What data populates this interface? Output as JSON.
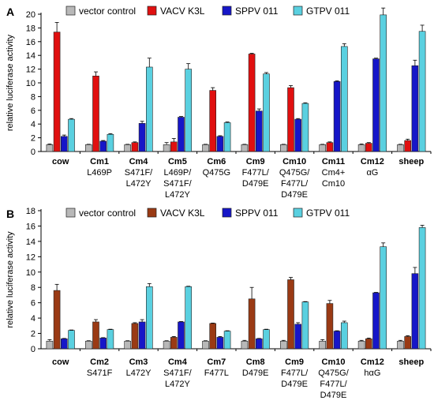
{
  "colors": {
    "A": [
      "#b8b8b8",
      "#e01010",
      "#1616c8",
      "#5ad0e0"
    ],
    "B": [
      "#b8b8b8",
      "#9a3a14",
      "#1616c8",
      "#5ad0e0"
    ]
  },
  "chart_data": [
    {
      "panel": "A",
      "type": "bar",
      "ylabel": "relative luciferase activity",
      "ylim": [
        0,
        20
      ],
      "yticks": [
        0,
        2,
        4,
        6,
        8,
        10,
        12,
        14,
        16,
        18,
        20
      ],
      "legend": [
        "vector control",
        "VACV K3L",
        "SPPV 011",
        "GTPV 011"
      ],
      "categories": [
        {
          "name": "cow",
          "sub": []
        },
        {
          "name": "Cm1",
          "sub": [
            "L469P"
          ]
        },
        {
          "name": "Cm4",
          "sub": [
            "S471F/",
            "L472Y"
          ]
        },
        {
          "name": "Cm5",
          "sub": [
            "L469P/",
            "S471F/",
            "L472Y"
          ]
        },
        {
          "name": "Cm6",
          "sub": [
            "Q475G"
          ]
        },
        {
          "name": "Cm9",
          "sub": [
            "F477L/",
            "D479E"
          ]
        },
        {
          "name": "Cm10",
          "sub": [
            "Q475G/",
            "F477L/",
            "D479E"
          ]
        },
        {
          "name": "Cm11",
          "sub": [
            "Cm4+",
            "Cm10"
          ]
        },
        {
          "name": "Cm12",
          "sub": [
            "αG"
          ]
        },
        {
          "name": "sheep",
          "sub": []
        }
      ],
      "series": [
        {
          "name": "vector control",
          "values": [
            1.0,
            1.0,
            1.0,
            1.0,
            1.0,
            1.0,
            1.0,
            1.0,
            1.0,
            1.0
          ],
          "errors": [
            0.1,
            0.05,
            0.05,
            0.3,
            0.05,
            0.05,
            0.05,
            0.05,
            0.1,
            0.05
          ]
        },
        {
          "name": "VACV K3L",
          "values": [
            17.4,
            11.0,
            1.3,
            1.4,
            8.9,
            14.2,
            9.3,
            1.3,
            1.2,
            1.6
          ],
          "errors": [
            1.4,
            0.6,
            0.1,
            0.5,
            0.4,
            0.1,
            0.3,
            0.1,
            0.1,
            0.2
          ]
        },
        {
          "name": "SPPV 011",
          "values": [
            2.2,
            1.5,
            4.1,
            5.0,
            2.2,
            5.9,
            4.7,
            10.2,
            13.5,
            12.5
          ],
          "errors": [
            0.2,
            0.1,
            0.3,
            0.1,
            0.1,
            0.3,
            0.1,
            0.1,
            0.1,
            0.8
          ]
        },
        {
          "name": "GTPV 011",
          "values": [
            4.7,
            2.5,
            12.3,
            12.0,
            4.2,
            11.3,
            7.0,
            15.3,
            19.9,
            17.5
          ],
          "errors": [
            0.1,
            0.1,
            1.3,
            0.8,
            0.1,
            0.2,
            0.1,
            0.4,
            1.0,
            0.9
          ]
        }
      ]
    },
    {
      "panel": "B",
      "type": "bar",
      "ylabel": "relative luciferase activity",
      "ylim": [
        0,
        18
      ],
      "yticks": [
        0,
        2,
        4,
        6,
        8,
        10,
        12,
        14,
        16,
        18
      ],
      "legend": [
        "vector control",
        "VACV K3L",
        "SPPV 011",
        "GTPV 011"
      ],
      "categories": [
        {
          "name": "cow",
          "sub": []
        },
        {
          "name": "Cm2",
          "sub": [
            "S471F"
          ]
        },
        {
          "name": "Cm3",
          "sub": [
            "L472Y"
          ]
        },
        {
          "name": "Cm4",
          "sub": [
            "S471F/",
            "L472Y"
          ]
        },
        {
          "name": "Cm7",
          "sub": [
            "F477L"
          ]
        },
        {
          "name": "Cm8",
          "sub": [
            "D479E"
          ]
        },
        {
          "name": "Cm9",
          "sub": [
            "F477L/",
            "D479E"
          ]
        },
        {
          "name": "Cm10",
          "sub": [
            "Q475G/",
            "F477L/",
            "D479E"
          ]
        },
        {
          "name": "Cm12",
          "sub": [
            "hαG"
          ]
        },
        {
          "name": "sheep",
          "sub": []
        }
      ],
      "series": [
        {
          "name": "vector control",
          "values": [
            1.0,
            1.0,
            1.0,
            1.0,
            1.0,
            1.0,
            1.0,
            1.0,
            1.0,
            1.0
          ],
          "errors": [
            0.2,
            0.05,
            0.05,
            0.05,
            0.05,
            0.1,
            0.1,
            0.2,
            0.1,
            0.1
          ]
        },
        {
          "name": "VACV K3L",
          "values": [
            7.6,
            3.5,
            3.3,
            1.5,
            3.3,
            6.5,
            9.0,
            5.9,
            1.3,
            1.6
          ],
          "errors": [
            0.8,
            0.3,
            0.1,
            0.1,
            0.05,
            1.5,
            0.3,
            0.4,
            0.1,
            0.1
          ]
        },
        {
          "name": "SPPV 011",
          "values": [
            1.3,
            1.4,
            3.5,
            3.5,
            1.5,
            1.3,
            3.2,
            2.3,
            7.3,
            9.8
          ],
          "errors": [
            0.05,
            0.05,
            0.3,
            0.05,
            0.1,
            0.05,
            0.2,
            0.05,
            0.05,
            0.8
          ]
        },
        {
          "name": "GTPV 011",
          "values": [
            2.4,
            2.5,
            8.1,
            8.1,
            2.3,
            2.5,
            6.1,
            3.4,
            13.3,
            15.8
          ],
          "errors": [
            0.05,
            0.05,
            0.4,
            0.05,
            0.05,
            0.05,
            0.05,
            0.2,
            0.5,
            0.3
          ]
        }
      ]
    }
  ]
}
